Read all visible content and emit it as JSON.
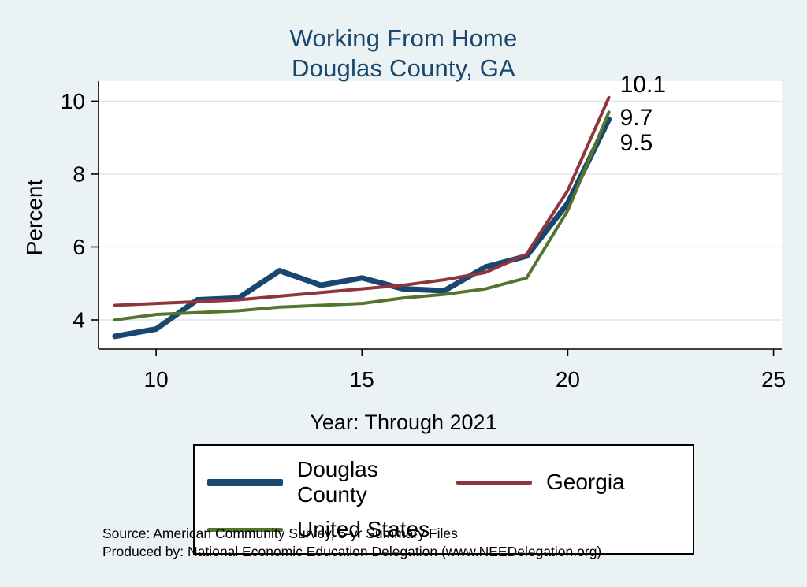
{
  "page": {
    "background_color": "#eaf2f3",
    "title_color": "#1a476f"
  },
  "chart": {
    "title_line1": "Working From Home",
    "title_line2": "Douglas County, GA",
    "ylabel": "Percent",
    "xlabel": "Year: Through 2021"
  },
  "chart_data": {
    "type": "line",
    "title": "Working From Home — Douglas County, GA",
    "xlabel": "Year: Through 2021",
    "ylabel": "Percent",
    "x": [
      9,
      10,
      11,
      12,
      13,
      14,
      15,
      16,
      17,
      18,
      19,
      20,
      21
    ],
    "xlim": [
      8.6,
      25.2
    ],
    "ylim": [
      3.2,
      10.55
    ],
    "xticks": [
      10,
      15,
      20,
      25
    ],
    "yticks": [
      4,
      6,
      8,
      10
    ],
    "grid": "horizontal",
    "grid_color": "#dbe7ee",
    "legend_position": "bottom",
    "series": [
      {
        "name": "Douglas County",
        "color": "#1a476f",
        "width": 7,
        "values": [
          3.55,
          3.75,
          4.55,
          4.6,
          5.35,
          4.95,
          5.15,
          4.85,
          4.8,
          5.45,
          5.75,
          7.2,
          9.5
        ]
      },
      {
        "name": "Georgia",
        "color": "#90353b",
        "width": 4,
        "values": [
          4.4,
          4.45,
          4.5,
          4.55,
          4.65,
          4.75,
          4.85,
          4.95,
          5.1,
          5.3,
          5.8,
          7.55,
          10.1
        ]
      },
      {
        "name": "United States",
        "color": "#55752f",
        "width": 4,
        "values": [
          4.0,
          4.15,
          4.2,
          4.25,
          4.35,
          4.4,
          4.45,
          4.6,
          4.7,
          4.85,
          5.15,
          7.0,
          9.7
        ]
      }
    ],
    "end_labels": [
      {
        "text": "10.1",
        "x": 21,
        "label_y": 10.45
      },
      {
        "text": "9.7",
        "x": 21,
        "label_y": 9.55
      },
      {
        "text": "9.5",
        "x": 21,
        "label_y": 8.85
      }
    ]
  },
  "footer": {
    "source": "Source: American Community Survey, 5-yr Summary Files",
    "produced_by": "Produced by: National Economic Education Delegation (www.NEEDelegation.org)"
  }
}
